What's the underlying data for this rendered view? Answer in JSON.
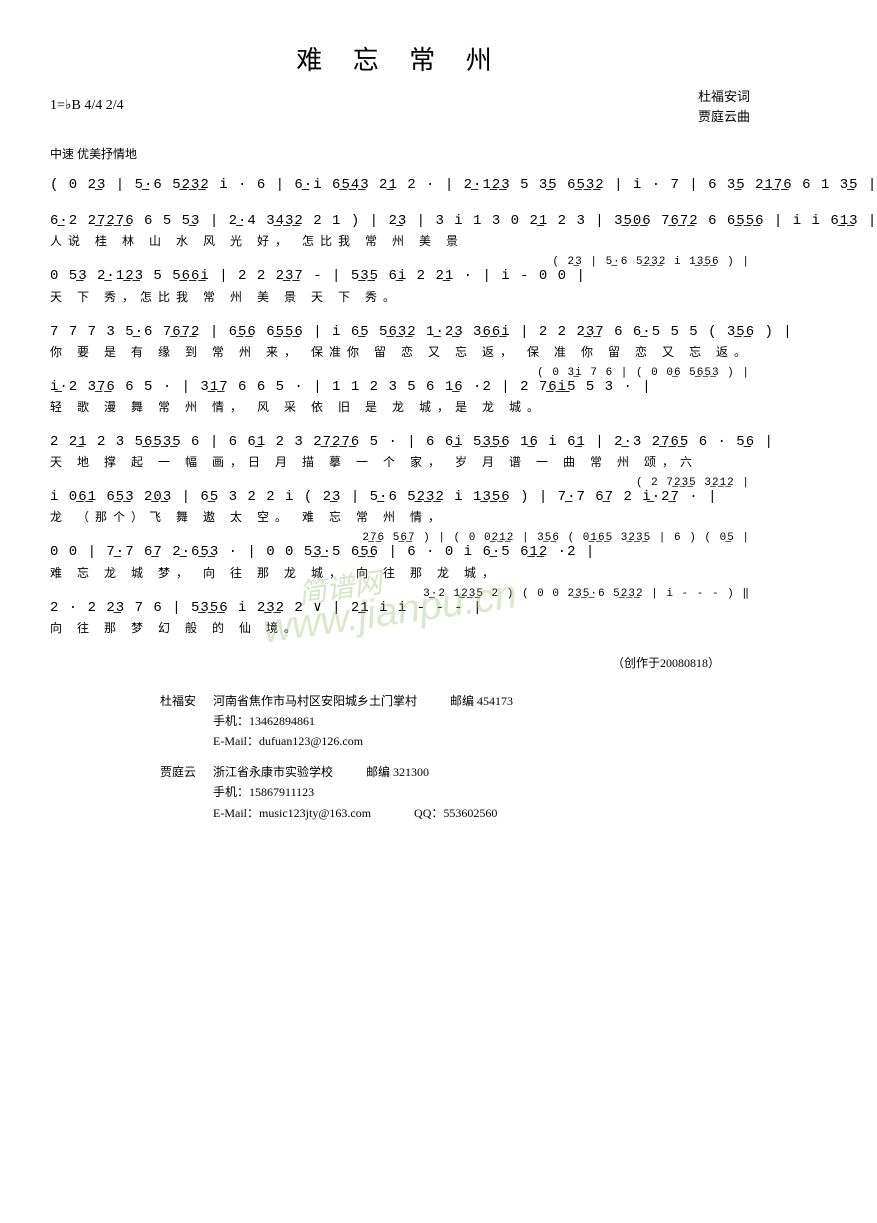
{
  "title": "难 忘 常 州",
  "key_signature": "1=♭B 4/4 2/4",
  "tempo_text": "中速 优美抒情地",
  "credits": {
    "lyricist": "杜福安词",
    "composer": "贾庭云曲"
  },
  "lines": [
    {
      "notation": "( 0 2͟3 | 5͟·6 5͟2͟3͟2 i · 6 | 6͟·i 6͟5͟4͟3 2͟1 2 · | 2͟·1͟2͟3 5 3͟5 6͟5͟3͟2 | i · 7 | 6 3͟5 2͟1͟7͟6 6 1 3͟5 |",
      "lyric": ""
    },
    {
      "notation": "6͟·2 2͟7͟2͟7͟6 6 5 5͟3 | 2͟·4 3͟4͟3͟2 2 1 ) | 2͟3 | 3 i 1 3 0 2͟1 2 3 | 3͟5͟0͟6 7͟6͟7͟2 6 6͟5͟5͟6 | i i 6͟1͟3 |",
      "lyric": "                                                  人说  桂 林 山 水  风   光 好，                                    怎比我  常 州 美  景"
    },
    {
      "upper": "( 2͟3 | 5͟·6 5͟2͟3͟2 i    1͟3͟5͟6 ) |",
      "notation": "0 5͟3 2͟·1͟2͟3 5  5͟6͟6͟i | 2 2 2͟3͟7 - | 5͟3͟5 6͟i 2 2͟1 · | i   -    0    0    |",
      "lyric": "  天  下     秀，怎比我 常 州 美 景      天    下   秀。"
    },
    {
      "notation": "7 7 7 3 5͟·6 7͟6͟7͟2 | 6͟5͟6 6͟5͟5͟6 | i 6͟5 5͟6͟3͟2 1͟·2͟3 3͟6͟6͟i | 2 2 2͟3͟7 6 6͟·5 5 5 ( 3͟5͟6 ) |",
      "lyric": "你 要 是 有 缘 到   常 州   来，         保准你  留 恋   又 忘    返，    保 准 你 留 恋 又 忘   返。"
    },
    {
      "upper": "( 0 3͟i 7 6 |                                                          ( 0 0͟6 5͟6͟5͟3 ) |",
      "notation": "i͟·2 3͟7͟6 6 5 ·  | 3͟1͟7 6 6 5 · | 1 1 2 3 5 6 1͟6 ·2 | 2 7͟6͟i͟5 5 3 ·    |",
      "lyric": "轻 歌 漫    舞       常  州   情，     风 采 依 旧 是 龙    城，是  龙    城。"
    },
    {
      "notation": "2 2͟1 2 3 5͟6͟5͟3͟5 6 | 6 6͟1 2 3 2͟7͟2͟7͟6 5 · | 6 6͟i 5͟3͟5͟6 1͟6 i 6͟1 | 2͟·3 2͟7͟6͟5 6 · 5͟6 |",
      "lyric": "天 地  撑 起 一  幅   画，日 月  描 摹 一  个     家，   岁 月  谱    一  曲   常     州   颂，六"
    },
    {
      "upper": "                                                                            ( 2 7͟2͟3͟5 3͟2͟1͟2 |",
      "notation": "i 0͟6͟1 6͟5͟3 2͟0͟3 | 6͟5 3 2 2 i ( 2͟3 | 5͟·6 5͟2͟3͟2 i 1͟3͟5͟6 ) | 7͟·7 6͟7 2 i͟·2͟7 ·    |",
      "lyric": "龙 （那个）飞   舞    遨  太 空。                                          难  忘 常 州    情，"
    },
    {
      "upper": "2͟7͟6 5͟6͟7 ) |                   ( 0    0͟2͟1͟2 | 3͟5͟6              ( 0͟1͟6͟5 3͟2͟3͟5 | 6 )              ( 0͟5 |",
      "notation": "0    0    | 7͟·7 6͟7 2͟·6͟5͟3 · | 0    0 5͟3͟·5 6͟5͟6 | 6 ·    0 i 6͟·5 6͟1͟2 ·2    |",
      "lyric": "                难 忘 龙   城 梦，             向 往  那 龙   城，             向   往  那 龙      城，"
    },
    {
      "upper": "3͟·2 1͟2͟3͟5 2 )                                     ( 0    0 2͟3͟5͟·6 5͟2͟3͟2 | i   -   -   -  ) ‖",
      "notation": "2 ·   2 2͟3 7 6 | 5͟3͟5͟6 i 2͟3͟2 2 ∨ | 2͟1 i    i   -   -   -    |",
      "lyric": "       向 往 那 梦    幻 般 的  仙           境。"
    }
  ],
  "date_note": "（创作于20080818）",
  "contacts": [
    {
      "name": "杜福安",
      "address": "河南省焦作市马村区安阳城乡土门掌村",
      "zip_label": "邮编",
      "zip": "454173",
      "phone_label": "手机：",
      "phone": "13462894861",
      "email_label": "E-Mail：",
      "email": "dufuan123@126.com"
    },
    {
      "name": "贾庭云",
      "address": "浙江省永康市实验学校",
      "zip_label": "邮编",
      "zip": "321300",
      "phone_label": "手机：",
      "phone": "15867911123",
      "email_label": "E-Mail：",
      "email": "music123jty@163.com",
      "qq_label": "QQ：",
      "qq": "553602560"
    }
  ],
  "watermark_cn": "简谱网",
  "watermark_url": "www.jianpu.cn"
}
